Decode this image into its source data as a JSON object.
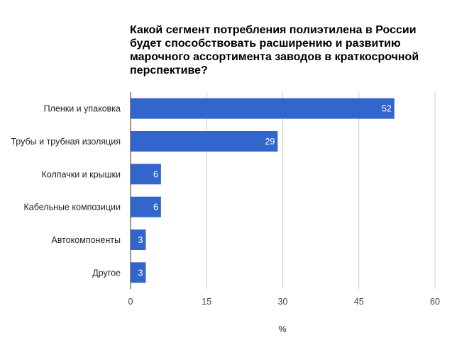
{
  "chart_data": {
    "type": "bar",
    "orientation": "horizontal",
    "title_lines": [
      "Какой сегмент потребления полиэтилена в России",
      "будет способствовать расширению и развитию",
      "марочного ассортимента заводов в краткосрочной",
      "перспективе?"
    ],
    "categories": [
      "Пленки и упаковка",
      "Трубы и трубная изоляция",
      "Колпачки и крышки",
      "Кабельные композиции",
      "Автокомпоненты",
      "Другое"
    ],
    "values": [
      52,
      29,
      6,
      6,
      3,
      3
    ],
    "data_labels": [
      "52",
      "29",
      "6",
      "6",
      "3",
      "3"
    ],
    "xlabel": "%",
    "xlim": [
      0,
      60
    ],
    "xticks": [
      "0",
      "15",
      "30",
      "45",
      "60"
    ],
    "grid": true,
    "legend": "none",
    "bar_color": "#3366cc",
    "grid_color": "#cccccc"
  }
}
